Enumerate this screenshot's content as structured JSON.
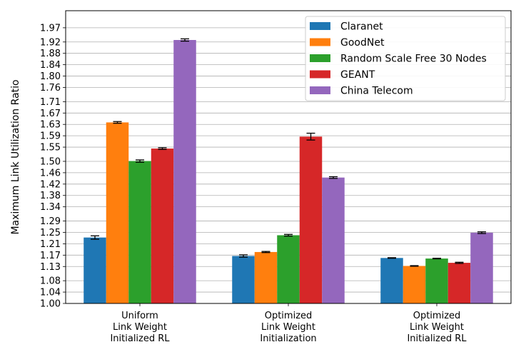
{
  "chart_data": {
    "type": "bar",
    "ylabel": "Maximum Link Utilization Ratio",
    "xlabel": "",
    "ylim": [
      1.0,
      2.03
    ],
    "grid": "horizontal",
    "legend_position": "top-right",
    "yticks": [
      "1.00",
      "1.04",
      "1.08",
      "1.13",
      "1.17",
      "1.21",
      "1.25",
      "1.29",
      "1.34",
      "1.38",
      "1.42",
      "1.46",
      "1.50",
      "1.55",
      "1.59",
      "1.63",
      "1.67",
      "1.71",
      "1.76",
      "1.80",
      "1.84",
      "1.88",
      "1.92",
      "1.97"
    ],
    "categories": [
      [
        "Uniform",
        "Link Weight",
        "Initialized RL"
      ],
      [
        "Optimized",
        "Link Weight",
        "Initialization"
      ],
      [
        "Optimized",
        "Link Weight",
        "Initialized RL"
      ]
    ],
    "series": [
      {
        "name": "Claranet",
        "color": "#1f77b4",
        "values": [
          1.232,
          1.167,
          1.16
        ],
        "errors": [
          0.006,
          0.004,
          0.001
        ]
      },
      {
        "name": "GoodNet",
        "color": "#ff7f0e",
        "values": [
          1.637,
          1.181,
          1.132
        ],
        "errors": [
          0.003,
          0.002,
          0.001
        ]
      },
      {
        "name": "Random Scale Free 30 Nodes",
        "color": "#2ca02c",
        "values": [
          1.501,
          1.24,
          1.158
        ],
        "errors": [
          0.004,
          0.003,
          0.001
        ]
      },
      {
        "name": "GEANT",
        "color": "#d62728",
        "values": [
          1.545,
          1.587,
          1.143
        ],
        "errors": [
          0.003,
          0.012,
          0.002
        ]
      },
      {
        "name": "China Telecom",
        "color": "#9467bd",
        "values": [
          1.927,
          1.443,
          1.249
        ],
        "errors": [
          0.004,
          0.003,
          0.003
        ]
      }
    ]
  }
}
